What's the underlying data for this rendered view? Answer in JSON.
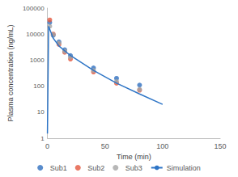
{
  "chart_data": {
    "type": "scatter",
    "x_label": "Time (min)",
    "y_label": "Plasma concentration (ng/mL)",
    "xlim": [
      0,
      150
    ],
    "xticks": [
      0,
      50,
      100,
      150
    ],
    "ylim": [
      1,
      100000
    ],
    "yticks": [
      1,
      10,
      100,
      1000,
      10000,
      100000
    ],
    "log": "y",
    "grid": false,
    "legend": "bottom",
    "series": [
      {
        "name": "Sub1",
        "type": "scatter",
        "marker": "circle",
        "color": "#2f6fbf",
        "x": [
          2,
          5,
          10,
          15,
          20,
          40,
          60,
          80
        ],
        "values": [
          28000,
          9000,
          5000,
          2500,
          1500,
          500,
          200,
          110
        ]
      },
      {
        "name": "Sub2",
        "type": "scatter",
        "marker": "circle",
        "color": "#e4583e",
        "x": [
          2,
          5,
          10,
          15,
          20,
          40,
          60,
          80
        ],
        "values": [
          35000,
          10000,
          4000,
          2000,
          1100,
          350,
          130,
          70
        ]
      },
      {
        "name": "Sub3",
        "type": "scatter",
        "marker": "circle",
        "color": "#a5a5a5",
        "x": [
          2,
          5,
          10,
          15,
          20,
          40,
          60,
          80
        ],
        "values": [
          20000,
          9500,
          4500,
          2200,
          1300,
          400,
          150,
          75
        ]
      },
      {
        "name": "Simulation",
        "type": "line",
        "line_style": "solid",
        "color": "#2e75c6",
        "x": [
          0,
          1,
          5,
          10,
          20,
          40,
          60,
          80,
          100
        ],
        "values": [
          1.5,
          20000,
          7000,
          3500,
          1500,
          400,
          130,
          50,
          20
        ]
      }
    ]
  }
}
